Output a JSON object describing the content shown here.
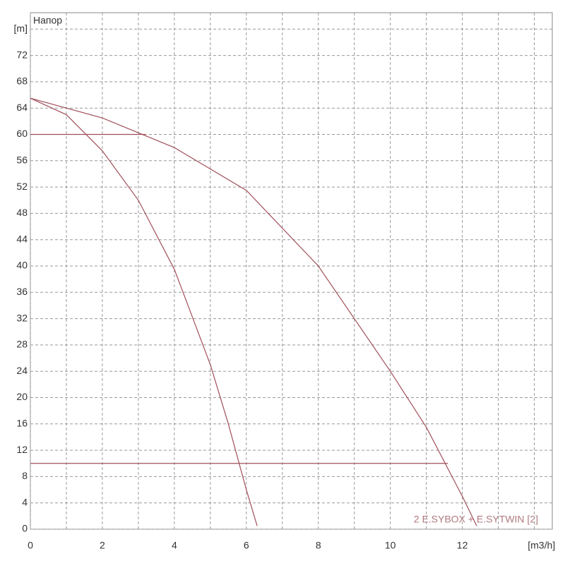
{
  "chart_data": {
    "type": "line",
    "title": "Напор",
    "annotation": "2 E.SYBOX + E.SYTWIN [2]",
    "xlim": [
      0,
      14.5
    ],
    "ylim": [
      0,
      78.5
    ],
    "xticks": [
      0,
      2,
      4,
      6,
      8,
      10,
      12,
      {
        "value": 14.2,
        "label": "[m3/h]"
      }
    ],
    "x_minor_ticks": [
      1,
      3,
      5,
      7,
      9,
      11,
      13,
      14
    ],
    "yticks": [
      0,
      4,
      8,
      12,
      16,
      20,
      24,
      28,
      32,
      36,
      40,
      44,
      48,
      52,
      56,
      60,
      64,
      68,
      72,
      {
        "value": 76,
        "label": "[m]"
      }
    ],
    "grid": true,
    "color": "#a0505a",
    "series": [
      {
        "x": [
          0,
          1,
          2,
          3,
          4,
          5,
          5.5,
          6,
          6.3
        ],
        "values": [
          65.5,
          63,
          57.5,
          50,
          39.5,
          25,
          16,
          6,
          0.5
        ]
      },
      {
        "x": [
          0,
          2,
          4,
          6,
          8,
          10,
          11,
          12,
          12.4
        ],
        "values": [
          65.5,
          62.5,
          58,
          51.5,
          40,
          24,
          15.5,
          5,
          0.5
        ]
      }
    ],
    "hlines": [
      {
        "y": 60,
        "x_end": 3.2
      },
      {
        "y": 10,
        "x_end": 11.6
      }
    ]
  }
}
